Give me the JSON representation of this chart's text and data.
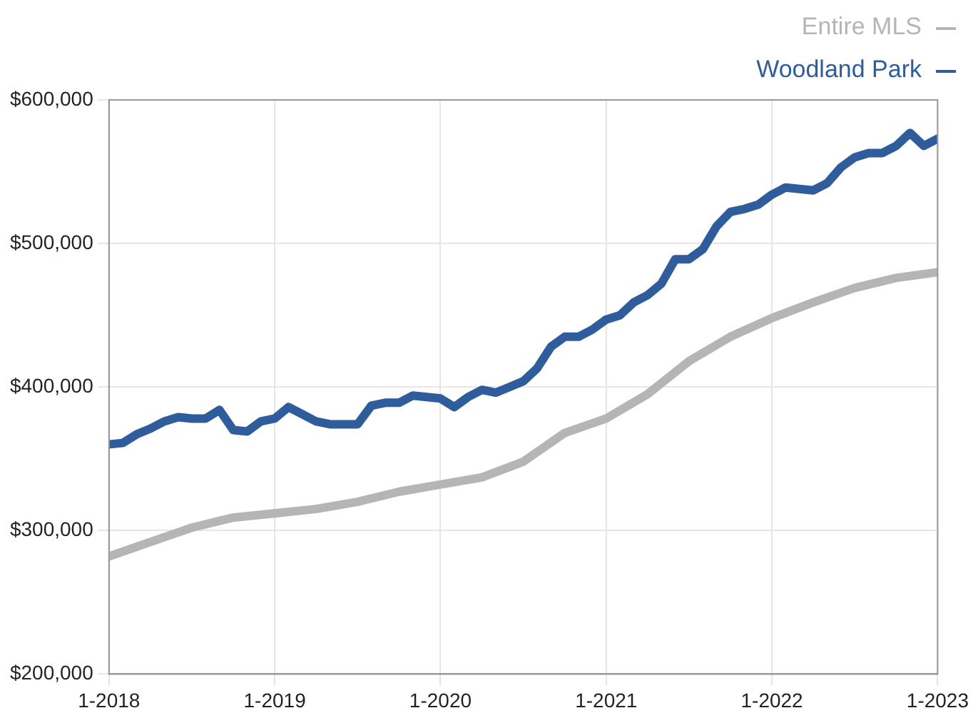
{
  "chart_data": {
    "type": "line",
    "legend": "top right",
    "grid": true,
    "marker": "none",
    "line_style": "solid",
    "ylim": [
      200000,
      600000
    ],
    "yticks": [
      {
        "value": 200000,
        "label": "$200,000"
      },
      {
        "value": 300000,
        "label": "$300,000"
      },
      {
        "value": 400000,
        "label": "$400,000"
      },
      {
        "value": 500000,
        "label": "$500,000"
      },
      {
        "value": 600000,
        "label": "$600,000"
      }
    ],
    "xlim": [
      "2018-01",
      "2023-01"
    ],
    "xticks": [
      {
        "value": "2018-01",
        "label": "1-2018"
      },
      {
        "value": "2019-01",
        "label": "1-2019"
      },
      {
        "value": "2020-01",
        "label": "1-2020"
      },
      {
        "value": "2021-01",
        "label": "1-2021"
      },
      {
        "value": "2022-01",
        "label": "1-2022"
      },
      {
        "value": "2023-01",
        "label": "1-2023"
      }
    ],
    "series": [
      {
        "name": "Entire MLS",
        "color": "#b5b5b5",
        "x": [
          "2018-01",
          "2018-04",
          "2018-07",
          "2018-10",
          "2019-01",
          "2019-04",
          "2019-07",
          "2019-10",
          "2020-01",
          "2020-04",
          "2020-07",
          "2020-10",
          "2021-01",
          "2021-04",
          "2021-07",
          "2021-10",
          "2022-01",
          "2022-04",
          "2022-07",
          "2022-10",
          "2023-01"
        ],
        "values": [
          282000,
          292000,
          302000,
          309000,
          312000,
          315000,
          320000,
          327000,
          332000,
          337000,
          348000,
          368000,
          378000,
          395000,
          418000,
          435000,
          448000,
          459000,
          469000,
          476000,
          480000
        ]
      },
      {
        "name": "Woodland Park",
        "color": "#2f5c9a",
        "x": [
          "2018-01",
          "2018-02",
          "2018-03",
          "2018-04",
          "2018-05",
          "2018-06",
          "2018-07",
          "2018-08",
          "2018-09",
          "2018-10",
          "2018-11",
          "2018-12",
          "2019-01",
          "2019-02",
          "2019-03",
          "2019-04",
          "2019-05",
          "2019-06",
          "2019-07",
          "2019-08",
          "2019-09",
          "2019-10",
          "2019-11",
          "2019-12",
          "2020-01",
          "2020-02",
          "2020-03",
          "2020-04",
          "2020-05",
          "2020-06",
          "2020-07",
          "2020-08",
          "2020-09",
          "2020-10",
          "2020-11",
          "2020-12",
          "2021-01",
          "2021-02",
          "2021-03",
          "2021-04",
          "2021-05",
          "2021-06",
          "2021-07",
          "2021-08",
          "2021-09",
          "2021-10",
          "2021-11",
          "2021-12",
          "2022-01",
          "2022-02",
          "2022-03",
          "2022-04",
          "2022-05",
          "2022-06",
          "2022-07",
          "2022-08",
          "2022-09",
          "2022-10",
          "2022-11",
          "2022-12",
          "2023-01"
        ],
        "values": [
          360000,
          361000,
          367000,
          371000,
          376000,
          379000,
          378000,
          378000,
          384000,
          370000,
          369000,
          376000,
          378000,
          386000,
          381000,
          376000,
          374000,
          374000,
          374000,
          387000,
          389000,
          389000,
          394000,
          393000,
          392000,
          386000,
          393000,
          398000,
          396000,
          400000,
          404000,
          413000,
          428000,
          435000,
          435000,
          440000,
          447000,
          450000,
          459000,
          464000,
          472000,
          489000,
          489000,
          496000,
          512000,
          522000,
          524000,
          527000,
          534000,
          539000,
          538000,
          537000,
          542000,
          553000,
          560000,
          563000,
          563000,
          568000,
          577000,
          568000,
          573000
        ]
      }
    ]
  }
}
